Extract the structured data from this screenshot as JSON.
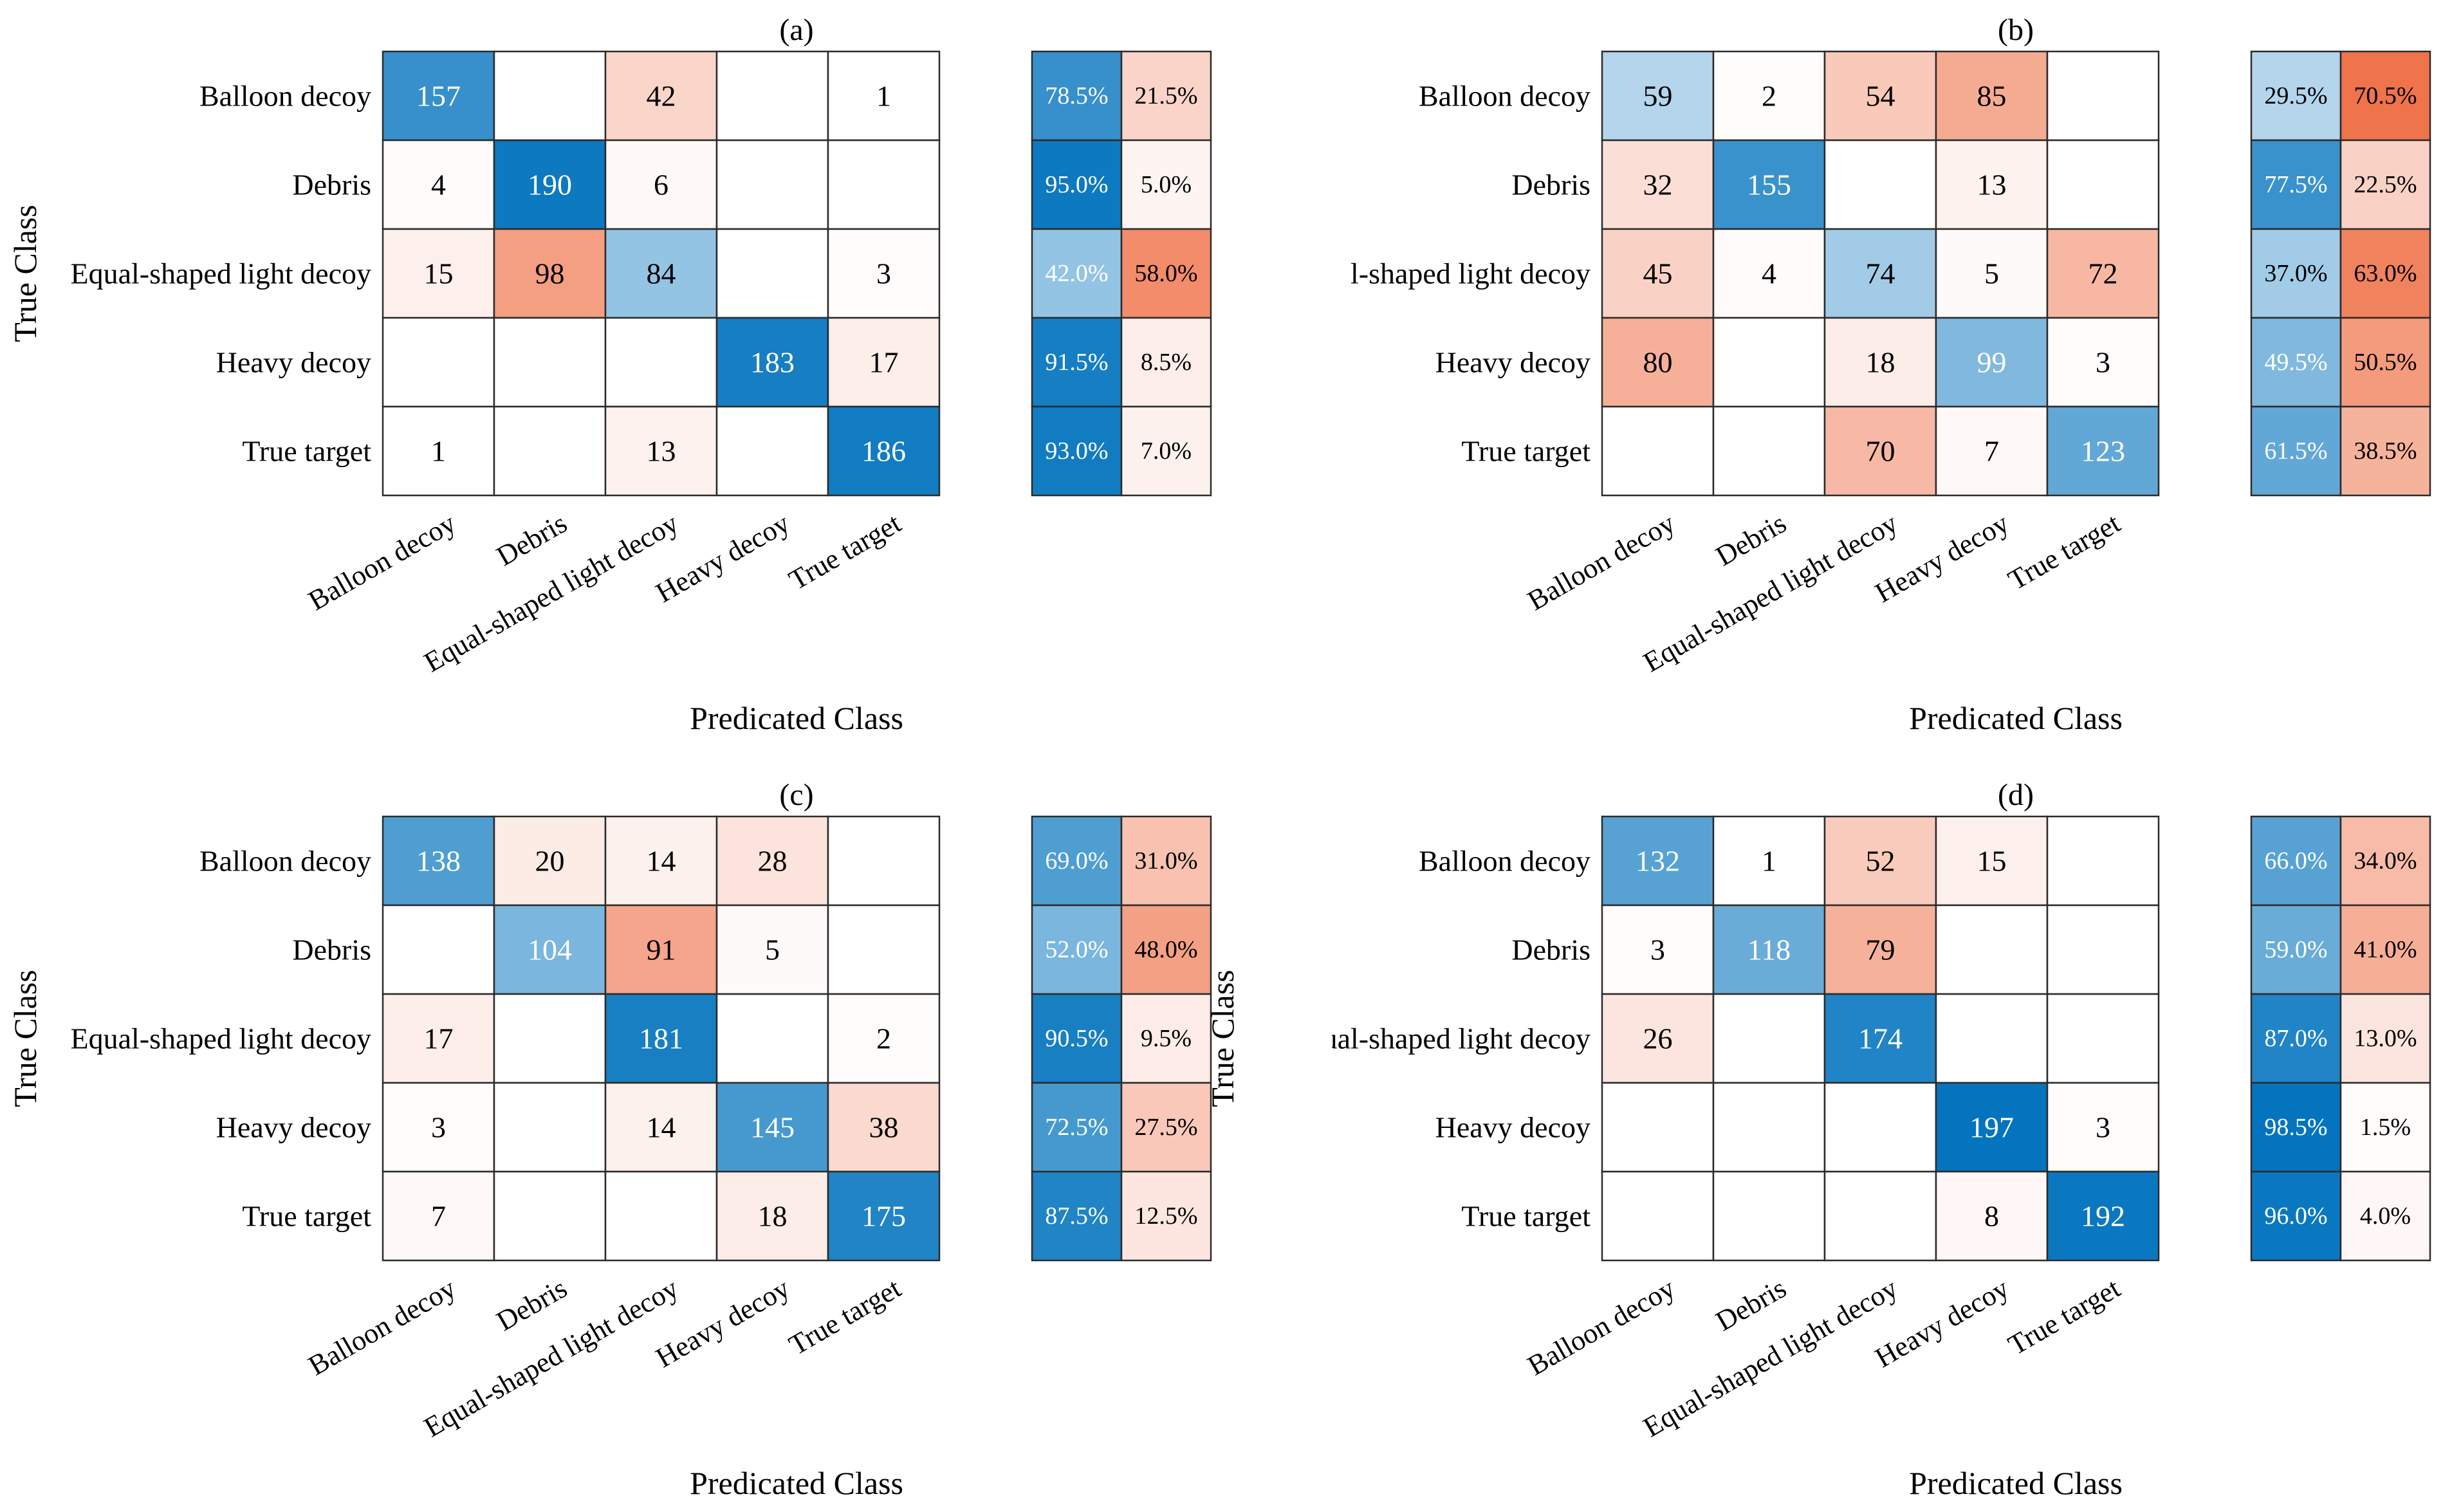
{
  "chart_data": [
    {
      "type": "heatmap",
      "title": "(a)",
      "xlabel": "Predicated Class",
      "ylabel": "True Class",
      "row_labels": [
        "Balloon decoy",
        "Debris",
        "Equal-shaped light decoy",
        "Heavy decoy",
        "True target"
      ],
      "col_labels": [
        "Balloon decoy",
        "Debris",
        "Equal-shaped light decoy",
        "Heavy decoy",
        "True target"
      ],
      "matrix": [
        [
          157,
          null,
          42,
          null,
          1
        ],
        [
          4,
          190,
          6,
          null,
          null
        ],
        [
          15,
          98,
          84,
          null,
          3
        ],
        [
          null,
          null,
          null,
          183,
          17
        ],
        [
          1,
          null,
          13,
          null,
          186
        ]
      ],
      "row_summary": [
        [
          "78.5%",
          "21.5%"
        ],
        [
          "95.0%",
          "5.0%"
        ],
        [
          "42.0%",
          "58.0%"
        ],
        [
          "91.5%",
          "8.5%"
        ],
        [
          "93.0%",
          "7.0%"
        ]
      ],
      "row_summary_values": [
        [
          78.5,
          21.5
        ],
        [
          95.0,
          5.0
        ],
        [
          42.0,
          58.0
        ],
        [
          91.5,
          8.5
        ],
        [
          93.0,
          7.0
        ]
      ]
    },
    {
      "type": "heatmap",
      "title": "(b)",
      "xlabel": "Predicated Class",
      "ylabel": "",
      "row_labels": [
        "Balloon decoy",
        "Debris",
        "l-shaped light decoy",
        "Heavy decoy",
        "True target"
      ],
      "col_labels": [
        "Balloon decoy",
        "Debris",
        "Equal-shaped light decoy",
        "Heavy decoy",
        "True target"
      ],
      "matrix": [
        [
          59,
          2,
          54,
          85,
          null
        ],
        [
          32,
          155,
          null,
          13,
          null
        ],
        [
          45,
          4,
          74,
          5,
          72
        ],
        [
          80,
          null,
          18,
          99,
          3
        ],
        [
          null,
          null,
          70,
          7,
          123
        ]
      ],
      "row_summary": [
        [
          "29.5%",
          "70.5%"
        ],
        [
          "77.5%",
          "22.5%"
        ],
        [
          "37.0%",
          "63.0%"
        ],
        [
          "49.5%",
          "50.5%"
        ],
        [
          "61.5%",
          "38.5%"
        ]
      ],
      "row_summary_values": [
        [
          29.5,
          70.5
        ],
        [
          77.5,
          22.5
        ],
        [
          37.0,
          63.0
        ],
        [
          49.5,
          50.5
        ],
        [
          61.5,
          38.5
        ]
      ]
    },
    {
      "type": "heatmap",
      "title": "(c)",
      "xlabel": "Predicated Class",
      "ylabel": "True Class",
      "row_labels": [
        "Balloon decoy",
        "Debris",
        "Equal-shaped light decoy",
        "Heavy decoy",
        "True target"
      ],
      "col_labels": [
        "Balloon decoy",
        "Debris",
        "Equal-shaped light decoy",
        "Heavy decoy",
        "True target"
      ],
      "matrix": [
        [
          138,
          20,
          14,
          28,
          null
        ],
        [
          null,
          104,
          91,
          5,
          null
        ],
        [
          17,
          null,
          181,
          null,
          2
        ],
        [
          3,
          null,
          14,
          145,
          38
        ],
        [
          7,
          null,
          null,
          18,
          175
        ]
      ],
      "row_summary": [
        [
          "69.0%",
          "31.0%"
        ],
        [
          "52.0%",
          "48.0%"
        ],
        [
          "90.5%",
          "9.5%"
        ],
        [
          "72.5%",
          "27.5%"
        ],
        [
          "87.5%",
          "12.5%"
        ]
      ],
      "row_summary_values": [
        [
          69.0,
          31.0
        ],
        [
          52.0,
          48.0
        ],
        [
          90.5,
          9.5
        ],
        [
          72.5,
          27.5
        ],
        [
          87.5,
          12.5
        ]
      ]
    },
    {
      "type": "heatmap",
      "title": "(d)",
      "xlabel": "Predicated Class",
      "ylabel": "True Class",
      "row_labels": [
        "Balloon decoy",
        "Debris",
        "Equal-shaped light decoy",
        "Heavy decoy",
        "True target"
      ],
      "col_labels": [
        "Balloon decoy",
        "Debris",
        "Equal-shaped light decoy",
        "Heavy decoy",
        "True target"
      ],
      "matrix": [
        [
          132,
          1,
          52,
          15,
          null
        ],
        [
          3,
          118,
          79,
          null,
          null
        ],
        [
          26,
          null,
          174,
          null,
          null
        ],
        [
          null,
          null,
          null,
          197,
          3
        ],
        [
          null,
          null,
          null,
          8,
          192
        ]
      ],
      "row_summary": [
        [
          "66.0%",
          "34.0%"
        ],
        [
          "59.0%",
          "41.0%"
        ],
        [
          "87.0%",
          "13.0%"
        ],
        [
          "98.5%",
          "1.5%"
        ],
        [
          "96.0%",
          "4.0%"
        ]
      ],
      "row_summary_values": [
        [
          66.0,
          34.0
        ],
        [
          59.0,
          41.0
        ],
        [
          87.0,
          13.0
        ],
        [
          98.5,
          1.5
        ],
        [
          96.0,
          4.0
        ]
      ]
    }
  ],
  "colors": {
    "correct_dark": "#0072bd",
    "correct_light": "#ffffff",
    "error_dark": "#ee6a3f",
    "error_light": "#ffffff",
    "grid_line": "#2b2b2b"
  }
}
